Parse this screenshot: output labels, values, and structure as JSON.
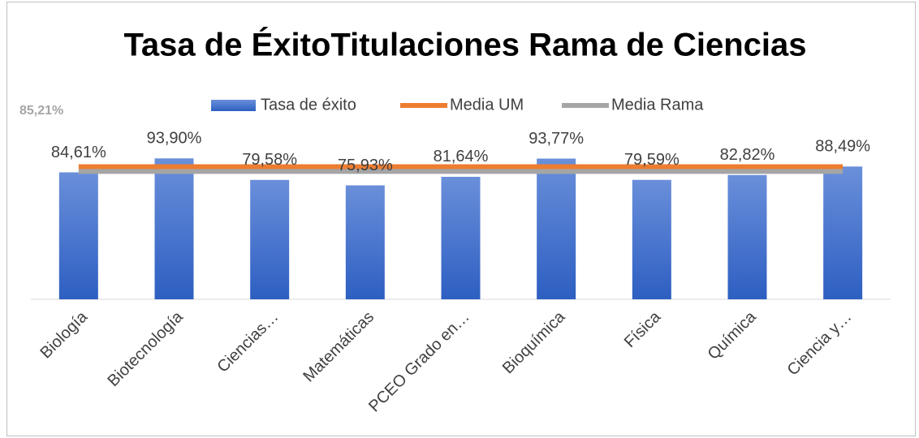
{
  "chart_data": {
    "type": "bar",
    "title": "Tasa de ÉxitoTitulaciones Rama de Ciencias",
    "categories": [
      "Biología",
      "Biotecnología",
      "Ciencias…",
      "Matemáticas",
      "PCEO Grado en…",
      "Bioquímica",
      "Física",
      "Química",
      "Ciencia y…"
    ],
    "series": [
      {
        "name": "Tasa de éxito",
        "type": "bar",
        "color": "#4472c4",
        "values": [
          84.61,
          93.9,
          79.58,
          75.93,
          81.64,
          93.77,
          79.59,
          82.82,
          88.49
        ],
        "value_labels": [
          "84,61%",
          "93,90%",
          "79,58%",
          "75,93%",
          "81,64%",
          "93,77%",
          "79,59%",
          "82,82%",
          "88,49%"
        ]
      },
      {
        "name": "Media UM",
        "type": "line",
        "color": "#ed7d31",
        "value": 88.4
      },
      {
        "name": "Media Rama",
        "type": "line",
        "color": "#a5a5a5",
        "value": 85.21,
        "value_label": "85,21%"
      }
    ],
    "ylim": [
      0,
      100
    ],
    "legend": "top"
  }
}
